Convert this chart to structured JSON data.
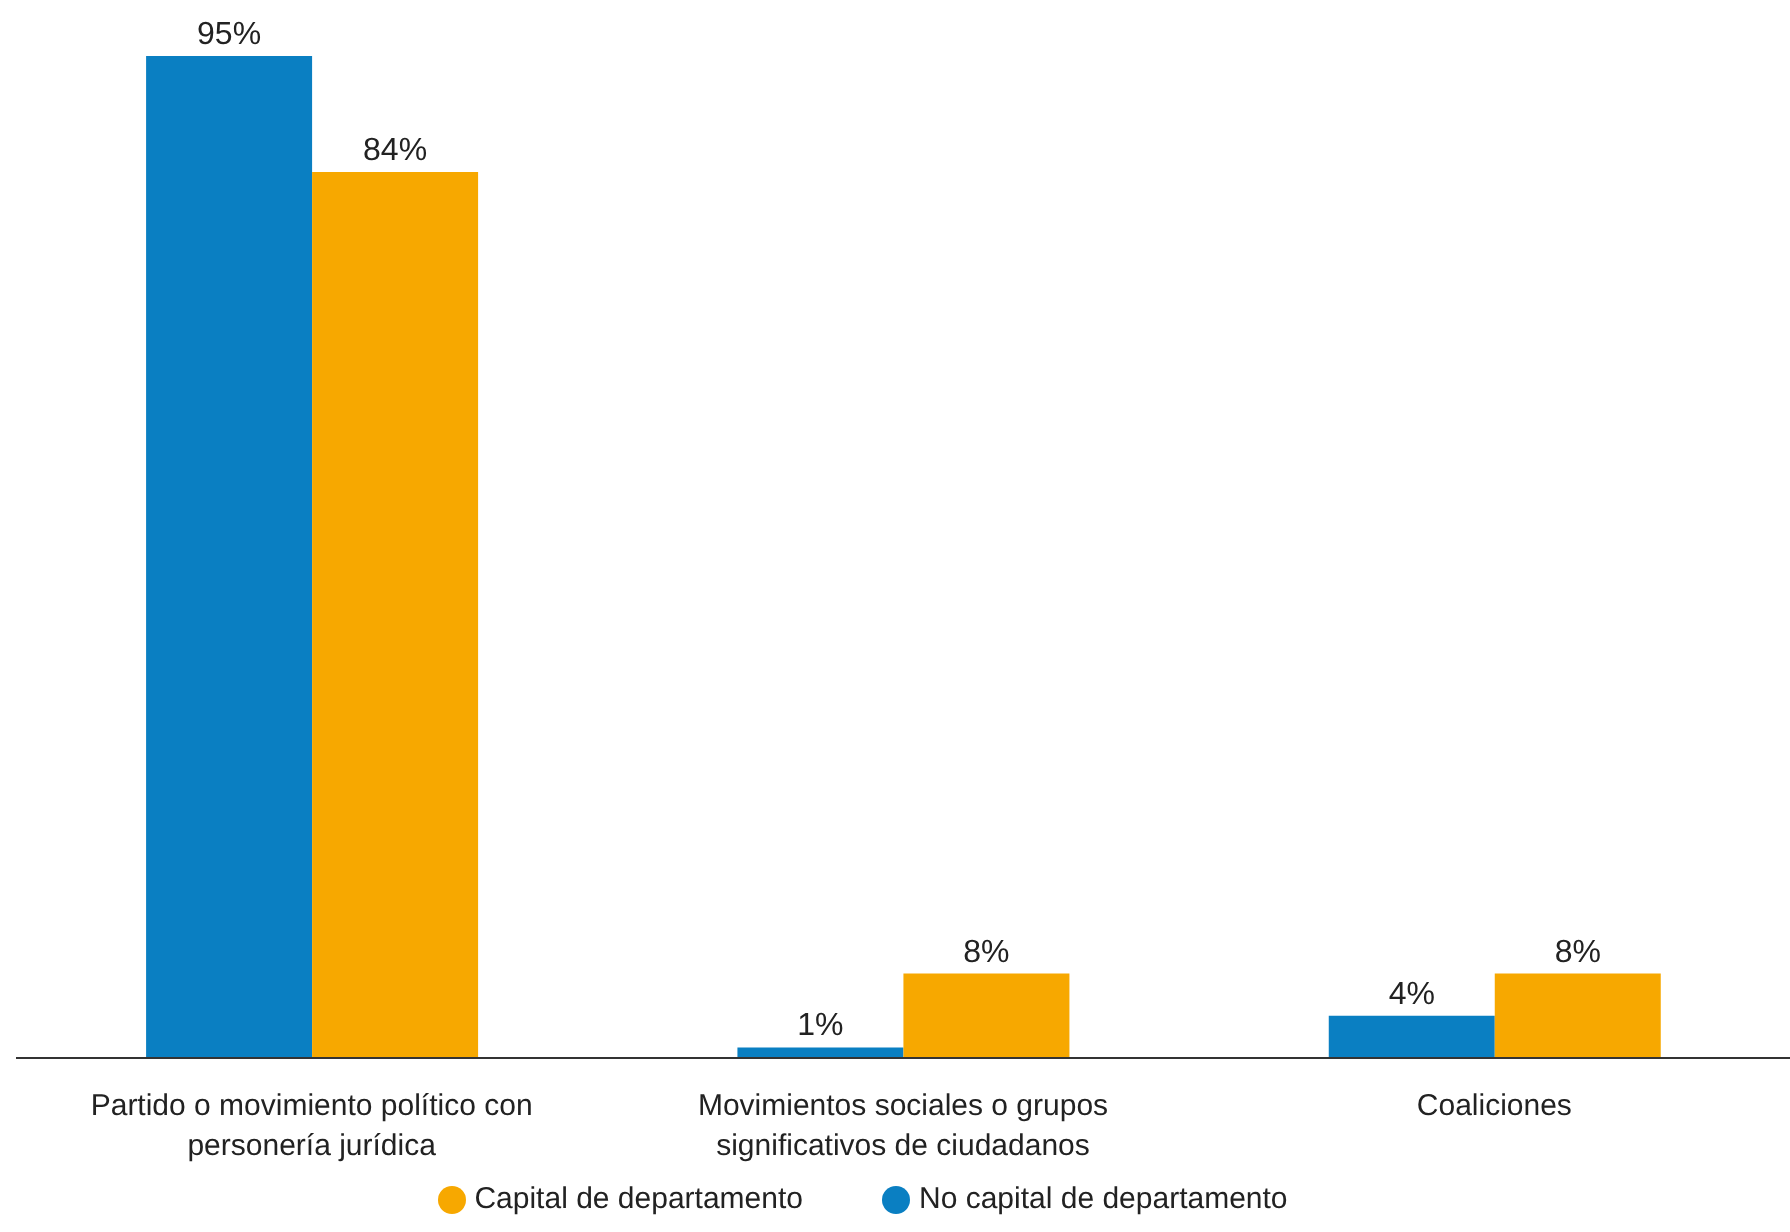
{
  "chart_data": {
    "type": "bar",
    "categories": [
      "Partido o movimiento político con personería jurídica",
      "Movimientos sociales o grupos significativos de ciudadanos",
      "Coaliciones"
    ],
    "series": [
      {
        "name": "No capital de departamento",
        "color": "#0a7fc2",
        "values": [
          95,
          1,
          4
        ],
        "value_labels": [
          "95%",
          "1%",
          "4%"
        ]
      },
      {
        "name": "Capital de departamento",
        "color": "#f7a800",
        "values": [
          84,
          8,
          8
        ],
        "value_labels": [
          "84%",
          "8%",
          "8%"
        ]
      }
    ],
    "legend": "bottom",
    "grid": false
  }
}
